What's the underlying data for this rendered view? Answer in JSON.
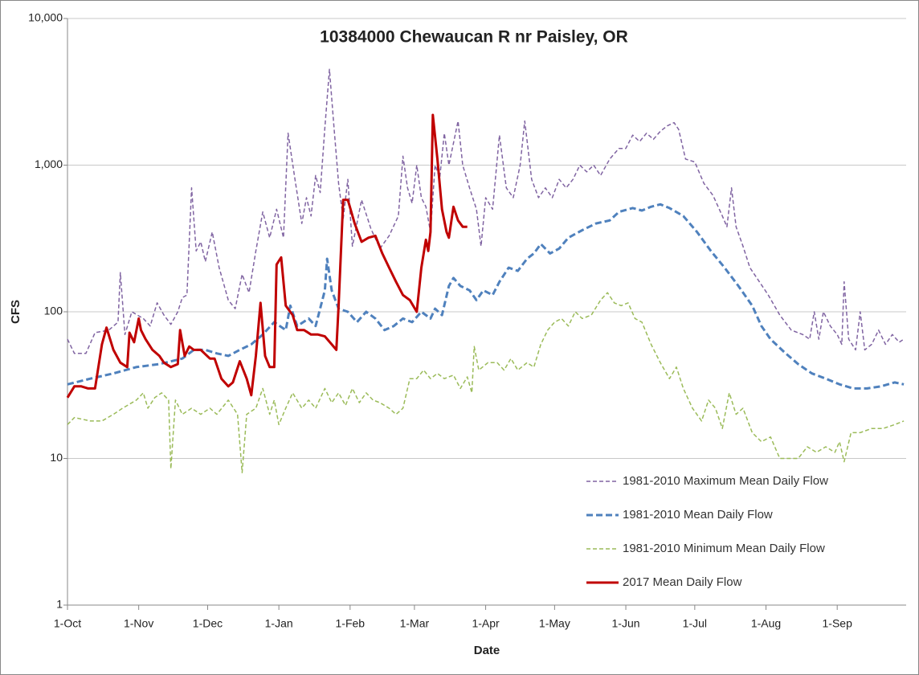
{
  "chart_data": {
    "type": "line",
    "title": "10384000  Chewaucan R nr Paisley, OR",
    "x_label": "Date",
    "y_label": "CFS",
    "y_scale": "log",
    "grid": true,
    "legend": "lower right",
    "xlim": [
      0,
      365
    ],
    "xticks": [
      {
        "value": 0,
        "label": "1-Oct"
      },
      {
        "value": 31,
        "label": "1-Nov"
      },
      {
        "value": 61,
        "label": "1-Dec"
      },
      {
        "value": 92,
        "label": "1-Jan"
      },
      {
        "value": 123,
        "label": "1-Feb"
      },
      {
        "value": 151,
        "label": "1-Mar"
      },
      {
        "value": 182,
        "label": "1-Apr"
      },
      {
        "value": 212,
        "label": "1-May"
      },
      {
        "value": 243,
        "label": "1-Jun"
      },
      {
        "value": 273,
        "label": "1-Jul"
      },
      {
        "value": 304,
        "label": "1-Aug"
      },
      {
        "value": 335,
        "label": "1-Sep"
      }
    ],
    "ylim": [
      1,
      10000
    ],
    "yticks": [
      1,
      10,
      100,
      {
        "value": 1000,
        "label": "1,000"
      },
      {
        "value": 10000,
        "label": "10,000"
      }
    ],
    "series": [
      {
        "name": "1981-2010 Maximum Mean Daily Flow",
        "color": "#8064a2",
        "dash": "5,3",
        "width": 1.5,
        "x": [
          0,
          3,
          8,
          12,
          18,
          22,
          23,
          25,
          28,
          33,
          36,
          39,
          42,
          45,
          48,
          50,
          52,
          54,
          56,
          58,
          60,
          63,
          66,
          70,
          73,
          76,
          79,
          82,
          85,
          88,
          91,
          94,
          96,
          99,
          102,
          104,
          106,
          108,
          110,
          112,
          114,
          116,
          118,
          120,
          122,
          124,
          128,
          132,
          136,
          140,
          144,
          146,
          148,
          150,
          152,
          154,
          156,
          158,
          160,
          162,
          164,
          166,
          170,
          172,
          175,
          178,
          180,
          182,
          185,
          188,
          191,
          194,
          197,
          199,
          202,
          205,
          208,
          211,
          214,
          217,
          220,
          223,
          226,
          229,
          232,
          236,
          240,
          243,
          246,
          249,
          252,
          255,
          258,
          261,
          264,
          266,
          269,
          273,
          277,
          281,
          285,
          287,
          289,
          291,
          294,
          297,
          300,
          305,
          310,
          315,
          320,
          323,
          325,
          327,
          329,
          332,
          335,
          337,
          338,
          340,
          343,
          345,
          347,
          350,
          353,
          356,
          359,
          362,
          364
        ],
        "values": [
          65,
          52,
          52,
          72,
          75,
          85,
          185,
          70,
          100,
          90,
          80,
          115,
          95,
          82,
          100,
          125,
          130,
          700,
          260,
          300,
          220,
          350,
          200,
          120,
          105,
          180,
          135,
          260,
          480,
          320,
          500,
          320,
          1650,
          800,
          400,
          600,
          450,
          850,
          650,
          1800,
          4500,
          1800,
          750,
          430,
          800,
          280,
          580,
          370,
          270,
          330,
          450,
          1150,
          700,
          550,
          1000,
          600,
          520,
          350,
          1000,
          820,
          1650,
          1000,
          2000,
          1000,
          700,
          500,
          280,
          600,
          500,
          1600,
          700,
          600,
          1000,
          2000,
          800,
          600,
          700,
          600,
          800,
          700,
          800,
          1000,
          900,
          1000,
          850,
          1100,
          1300,
          1300,
          1600,
          1450,
          1650,
          1500,
          1700,
          1850,
          1950,
          1750,
          1100,
          1050,
          750,
          620,
          450,
          380,
          700,
          380,
          280,
          200,
          170,
          130,
          95,
          75,
          70,
          65,
          100,
          65,
          100,
          80,
          70,
          60,
          160,
          65,
          55,
          100,
          55,
          60,
          75,
          60,
          70,
          62,
          65
        ]
      },
      {
        "name": "1981-2010 Mean Daily Flow",
        "color": "#4f81bd",
        "dash": "8,4",
        "width": 3,
        "x": [
          0,
          10,
          20,
          30,
          40,
          50,
          55,
          60,
          65,
          70,
          75,
          80,
          85,
          90,
          95,
          97,
          100,
          105,
          108,
          112,
          113,
          115,
          118,
          122,
          126,
          130,
          134,
          138,
          142,
          146,
          150,
          154,
          158,
          160,
          163,
          166,
          168,
          171,
          175,
          178,
          181,
          185,
          188,
          192,
          196,
          200,
          203,
          206,
          210,
          214,
          218,
          224,
          230,
          236,
          240,
          246,
          250,
          254,
          258,
          262,
          268,
          274,
          280,
          286,
          292,
          298,
          302,
          306,
          312,
          318,
          324,
          330,
          336,
          342,
          348,
          354,
          360,
          364
        ],
        "values": [
          32,
          35,
          38,
          42,
          44,
          48,
          55,
          55,
          52,
          50,
          55,
          60,
          70,
          85,
          75,
          110,
          80,
          90,
          80,
          140,
          230,
          140,
          105,
          100,
          85,
          100,
          90,
          75,
          80,
          90,
          85,
          100,
          90,
          105,
          95,
          150,
          170,
          150,
          140,
          120,
          140,
          130,
          160,
          200,
          190,
          230,
          250,
          290,
          250,
          270,
          320,
          360,
          400,
          420,
          480,
          510,
          490,
          520,
          540,
          510,
          450,
          350,
          260,
          200,
          150,
          110,
          80,
          65,
          53,
          44,
          38,
          35,
          32,
          30,
          30,
          31,
          33,
          32
        ]
      },
      {
        "name": "1981-2010 Minimum Mean Daily Flow",
        "color": "#9bbb59",
        "dash": "5,3",
        "width": 1.5,
        "x": [
          0,
          3,
          10,
          15,
          20,
          24,
          30,
          33,
          35,
          38,
          41,
          44,
          45,
          47,
          50,
          54,
          58,
          62,
          65,
          70,
          74,
          76,
          78,
          82,
          85,
          88,
          90,
          92,
          95,
          98,
          102,
          105,
          108,
          112,
          115,
          118,
          121,
          124,
          127,
          130,
          133,
          136,
          140,
          143,
          146,
          149,
          152,
          155,
          158,
          161,
          164,
          168,
          171,
          174,
          176,
          177,
          179,
          183,
          187,
          190,
          193,
          196,
          200,
          203,
          206,
          209,
          212,
          215,
          218,
          221,
          224,
          228,
          232,
          235,
          238,
          241,
          244,
          247,
          250,
          254,
          258,
          262,
          265,
          268,
          272,
          276,
          279,
          282,
          285,
          288,
          291,
          294,
          298,
          302,
          306,
          310,
          314,
          318,
          322,
          326,
          330,
          334,
          336,
          338,
          341,
          345,
          350,
          355,
          360,
          364
        ],
        "values": [
          17,
          19,
          18,
          18,
          20,
          22,
          25,
          28,
          22,
          26,
          28,
          25,
          8.5,
          25,
          20,
          22,
          20,
          22,
          20,
          25,
          20,
          8,
          20,
          22,
          30,
          20,
          25,
          17,
          22,
          28,
          22,
          25,
          22,
          30,
          24,
          28,
          23,
          30,
          24,
          28,
          25,
          24,
          22,
          20,
          22,
          35,
          35,
          40,
          35,
          38,
          35,
          37,
          30,
          36,
          28,
          58,
          40,
          45,
          45,
          40,
          48,
          40,
          45,
          42,
          60,
          75,
          85,
          90,
          80,
          100,
          90,
          95,
          120,
          135,
          115,
          110,
          115,
          90,
          85,
          60,
          45,
          35,
          42,
          30,
          22,
          18,
          25,
          22,
          16,
          28,
          20,
          22,
          15,
          13,
          14,
          10,
          10,
          10,
          12,
          11,
          12,
          11,
          13,
          9.5,
          15,
          15,
          16,
          16,
          17,
          18
        ]
      },
      {
        "name": "2017 Mean Daily Flow",
        "color": "#c00000",
        "dash": "none",
        "width": 3,
        "x": [
          0,
          3,
          6,
          9,
          12,
          15,
          17,
          20,
          23,
          26,
          27,
          29,
          31,
          32,
          34,
          37,
          40,
          42,
          45,
          48,
          49,
          51,
          53,
          55,
          58,
          62,
          64,
          67,
          70,
          72,
          75,
          78,
          80,
          82,
          84,
          86,
          88,
          90,
          91,
          93,
          95,
          98,
          100,
          103,
          106,
          109,
          112,
          115,
          117,
          118,
          120,
          122,
          125,
          128,
          131,
          134,
          137,
          140,
          143,
          146,
          149,
          152,
          154,
          156,
          157,
          158,
          159,
          161,
          163,
          165,
          166,
          168,
          170,
          172,
          174
        ],
        "values": [
          26,
          31,
          31,
          30,
          30,
          60,
          78,
          55,
          45,
          42,
          72,
          62,
          90,
          75,
          65,
          55,
          50,
          45,
          42,
          44,
          75,
          50,
          58,
          55,
          55,
          48,
          48,
          35,
          31,
          33,
          46,
          35,
          27,
          50,
          115,
          50,
          42,
          42,
          210,
          235,
          110,
          95,
          75,
          75,
          70,
          70,
          68,
          60,
          55,
          110,
          580,
          580,
          400,
          300,
          320,
          330,
          250,
          200,
          160,
          130,
          120,
          100,
          200,
          310,
          260,
          350,
          2200,
          1100,
          500,
          350,
          320,
          520,
          420,
          380,
          380
        ]
      }
    ]
  }
}
